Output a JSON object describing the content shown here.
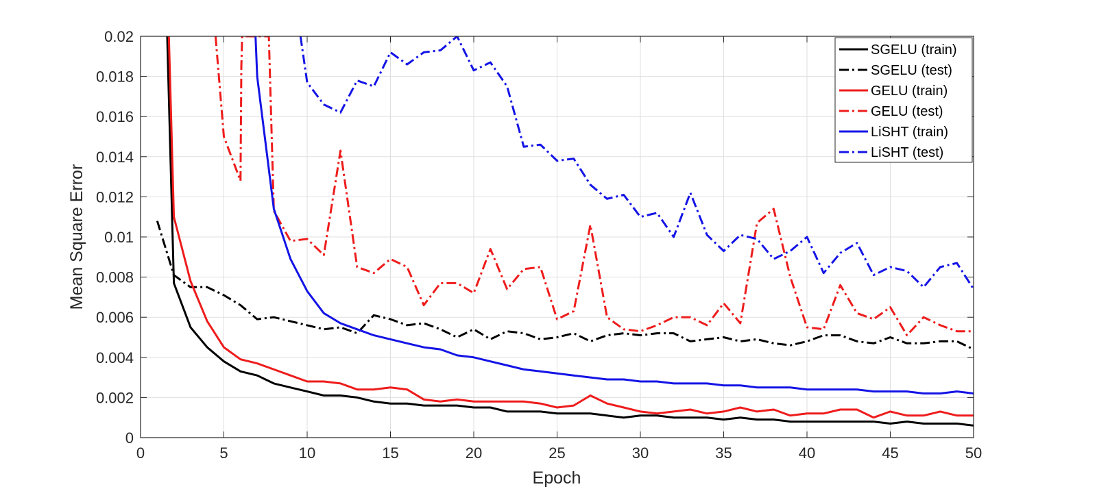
{
  "chart_data": {
    "type": "line",
    "title": "",
    "xlabel": "Epoch",
    "ylabel": "Mean Square Error",
    "xlim": [
      0,
      50
    ],
    "ylim": [
      0,
      0.02
    ],
    "grid": true,
    "legend_position": "top-right",
    "x_ticks": [
      0,
      5,
      10,
      15,
      20,
      25,
      30,
      35,
      40,
      45,
      50
    ],
    "x_tick_labels": [
      "0",
      "5",
      "10",
      "15",
      "20",
      "25",
      "30",
      "35",
      "40",
      "45",
      "50"
    ],
    "y_ticks": [
      0,
      0.002,
      0.004,
      0.006,
      0.008,
      0.01,
      0.012,
      0.014,
      0.016,
      0.018,
      0.02
    ],
    "y_tick_labels": [
      "0",
      "0.002",
      "0.004",
      "0.006",
      "0.008",
      "0.01",
      "0.012",
      "0.014",
      "0.016",
      "0.018",
      "0.02"
    ],
    "series": [
      {
        "name": "SGELU (train)",
        "color": "#000000",
        "dash": "solid",
        "x": [
          1.6,
          2,
          3,
          4,
          5,
          6,
          7,
          8,
          9,
          10,
          11,
          12,
          13,
          14,
          15,
          16,
          17,
          18,
          19,
          20,
          21,
          22,
          23,
          24,
          25,
          26,
          27,
          28,
          29,
          30,
          31,
          32,
          33,
          34,
          35,
          36,
          37,
          38,
          39,
          40,
          41,
          42,
          43,
          44,
          45,
          46,
          47,
          48,
          49,
          50
        ],
        "y": [
          0.02,
          0.0077,
          0.0055,
          0.0045,
          0.0038,
          0.0033,
          0.0031,
          0.0027,
          0.0025,
          0.0023,
          0.0021,
          0.0021,
          0.002,
          0.0018,
          0.0017,
          0.0017,
          0.0016,
          0.0016,
          0.0016,
          0.0015,
          0.0015,
          0.0013,
          0.0013,
          0.0013,
          0.0012,
          0.0012,
          0.0012,
          0.0011,
          0.001,
          0.0011,
          0.0011,
          0.001,
          0.001,
          0.001,
          0.0009,
          0.001,
          0.0009,
          0.0009,
          0.0008,
          0.0008,
          0.0008,
          0.0008,
          0.0008,
          0.0008,
          0.0007,
          0.0008,
          0.0007,
          0.0007,
          0.0007,
          0.0006
        ]
      },
      {
        "name": "SGELU (test)",
        "color": "#000000",
        "dash": "dashdot",
        "x": [
          1,
          2,
          3,
          4,
          5,
          6,
          7,
          8,
          9,
          10,
          11,
          12,
          13,
          14,
          15,
          16,
          17,
          18,
          19,
          20,
          21,
          22,
          23,
          24,
          25,
          26,
          27,
          28,
          29,
          30,
          31,
          32,
          33,
          34,
          35,
          36,
          37,
          38,
          39,
          40,
          41,
          42,
          43,
          44,
          45,
          46,
          47,
          48,
          49,
          50
        ],
        "y": [
          0.0108,
          0.0081,
          0.0075,
          0.0075,
          0.0071,
          0.0066,
          0.0059,
          0.006,
          0.0058,
          0.0056,
          0.0054,
          0.0055,
          0.0052,
          0.0061,
          0.0059,
          0.0056,
          0.0057,
          0.0054,
          0.005,
          0.0054,
          0.0049,
          0.0053,
          0.0052,
          0.0049,
          0.005,
          0.0052,
          0.0048,
          0.0051,
          0.0052,
          0.0051,
          0.0052,
          0.0052,
          0.0048,
          0.0049,
          0.005,
          0.0048,
          0.0049,
          0.0047,
          0.0046,
          0.0048,
          0.0051,
          0.0051,
          0.0048,
          0.0047,
          0.005,
          0.0047,
          0.0047,
          0.0048,
          0.0048,
          0.0044
        ]
      },
      {
        "name": "GELU (train)",
        "color": "#ee1c1c",
        "dash": "solid",
        "x": [
          1.7,
          2,
          3,
          4,
          5,
          6,
          7,
          8,
          9,
          10,
          11,
          12,
          13,
          14,
          15,
          16,
          17,
          18,
          19,
          20,
          21,
          22,
          23,
          24,
          25,
          26,
          27,
          28,
          29,
          30,
          31,
          32,
          33,
          34,
          35,
          36,
          37,
          38,
          39,
          40,
          41,
          42,
          43,
          44,
          45,
          46,
          47,
          48,
          49,
          50
        ],
        "y": [
          0.02,
          0.011,
          0.0078,
          0.0058,
          0.0045,
          0.0039,
          0.0037,
          0.0034,
          0.0031,
          0.0028,
          0.0028,
          0.0027,
          0.0024,
          0.0024,
          0.0025,
          0.0024,
          0.0019,
          0.0018,
          0.0019,
          0.0018,
          0.0018,
          0.0018,
          0.0018,
          0.0017,
          0.0015,
          0.0016,
          0.0021,
          0.0017,
          0.0015,
          0.0013,
          0.0012,
          0.0013,
          0.0014,
          0.0012,
          0.0013,
          0.0015,
          0.0013,
          0.0014,
          0.0011,
          0.0012,
          0.0012,
          0.0014,
          0.0014,
          0.001,
          0.0013,
          0.0011,
          0.0011,
          0.0013,
          0.0011,
          0.0011
        ]
      },
      {
        "name": "GELU (test)",
        "color": "#ee1c1c",
        "dash": "dashdot",
        "x": [
          4.5,
          5,
          6,
          6.05,
          6.1,
          7.7,
          8,
          9,
          10,
          11,
          12,
          13,
          14,
          15,
          16,
          17,
          18,
          19,
          20,
          21,
          22,
          23,
          24,
          25,
          26,
          27,
          28,
          29,
          30,
          31,
          32,
          33,
          34,
          35,
          36,
          37,
          38,
          39,
          40,
          41,
          42,
          43,
          44,
          45,
          46,
          47,
          48,
          49,
          50
        ],
        "y": [
          0.02,
          0.015,
          0.0128,
          0.0185,
          0.02,
          0.02,
          0.0113,
          0.0098,
          0.0099,
          0.0091,
          0.0143,
          0.0085,
          0.0082,
          0.0089,
          0.0085,
          0.0066,
          0.0077,
          0.0077,
          0.0072,
          0.0094,
          0.0074,
          0.0084,
          0.0085,
          0.0059,
          0.0063,
          0.0106,
          0.006,
          0.0054,
          0.0053,
          0.0056,
          0.006,
          0.006,
          0.0056,
          0.0067,
          0.0057,
          0.0107,
          0.0114,
          0.008,
          0.0055,
          0.0054,
          0.0076,
          0.0062,
          0.0059,
          0.0065,
          0.0051,
          0.006,
          0.0056,
          0.0053,
          0.0053
        ]
      },
      {
        "name": "LiSHT (train)",
        "color": "#1414e6",
        "dash": "solid",
        "x": [
          6.9,
          7,
          8,
          9,
          10,
          11,
          12,
          13,
          14,
          15,
          16,
          17,
          18,
          19,
          20,
          21,
          22,
          23,
          24,
          25,
          26,
          27,
          28,
          29,
          30,
          31,
          32,
          33,
          34,
          35,
          36,
          37,
          38,
          39,
          40,
          41,
          42,
          43,
          44,
          45,
          46,
          47,
          48,
          49,
          50
        ],
        "y": [
          0.02,
          0.018,
          0.0114,
          0.0089,
          0.0073,
          0.0062,
          0.0057,
          0.0054,
          0.0051,
          0.0049,
          0.0047,
          0.0045,
          0.0044,
          0.0041,
          0.004,
          0.0038,
          0.0036,
          0.0034,
          0.0033,
          0.0032,
          0.0031,
          0.003,
          0.0029,
          0.0029,
          0.0028,
          0.0028,
          0.0027,
          0.0027,
          0.0027,
          0.0026,
          0.0026,
          0.0025,
          0.0025,
          0.0025,
          0.0024,
          0.0024,
          0.0024,
          0.0024,
          0.0023,
          0.0023,
          0.0023,
          0.0022,
          0.0022,
          0.0023,
          0.0022
        ]
      },
      {
        "name": "LiSHT (test)",
        "color": "#1414e6",
        "dash": "dashdot",
        "x": [
          9.6,
          10,
          11,
          12,
          13,
          14,
          15,
          16,
          17,
          18,
          19,
          20,
          21,
          22,
          23,
          24,
          25,
          26,
          27,
          28,
          29,
          30,
          31,
          32,
          33,
          34,
          35,
          36,
          37,
          38,
          39,
          40,
          41,
          42,
          43,
          44,
          45,
          46,
          47,
          48,
          49,
          50
        ],
        "y": [
          0.02,
          0.0177,
          0.0166,
          0.0162,
          0.0178,
          0.0175,
          0.0192,
          0.0186,
          0.0192,
          0.0193,
          0.02,
          0.0183,
          0.0187,
          0.0175,
          0.0145,
          0.0146,
          0.0138,
          0.0139,
          0.0126,
          0.0119,
          0.0121,
          0.011,
          0.0112,
          0.01,
          0.0122,
          0.0101,
          0.0093,
          0.0101,
          0.0099,
          0.0089,
          0.0093,
          0.01,
          0.0082,
          0.0092,
          0.0097,
          0.0081,
          0.0085,
          0.0083,
          0.0075,
          0.0085,
          0.0087,
          0.0074
        ]
      }
    ]
  }
}
